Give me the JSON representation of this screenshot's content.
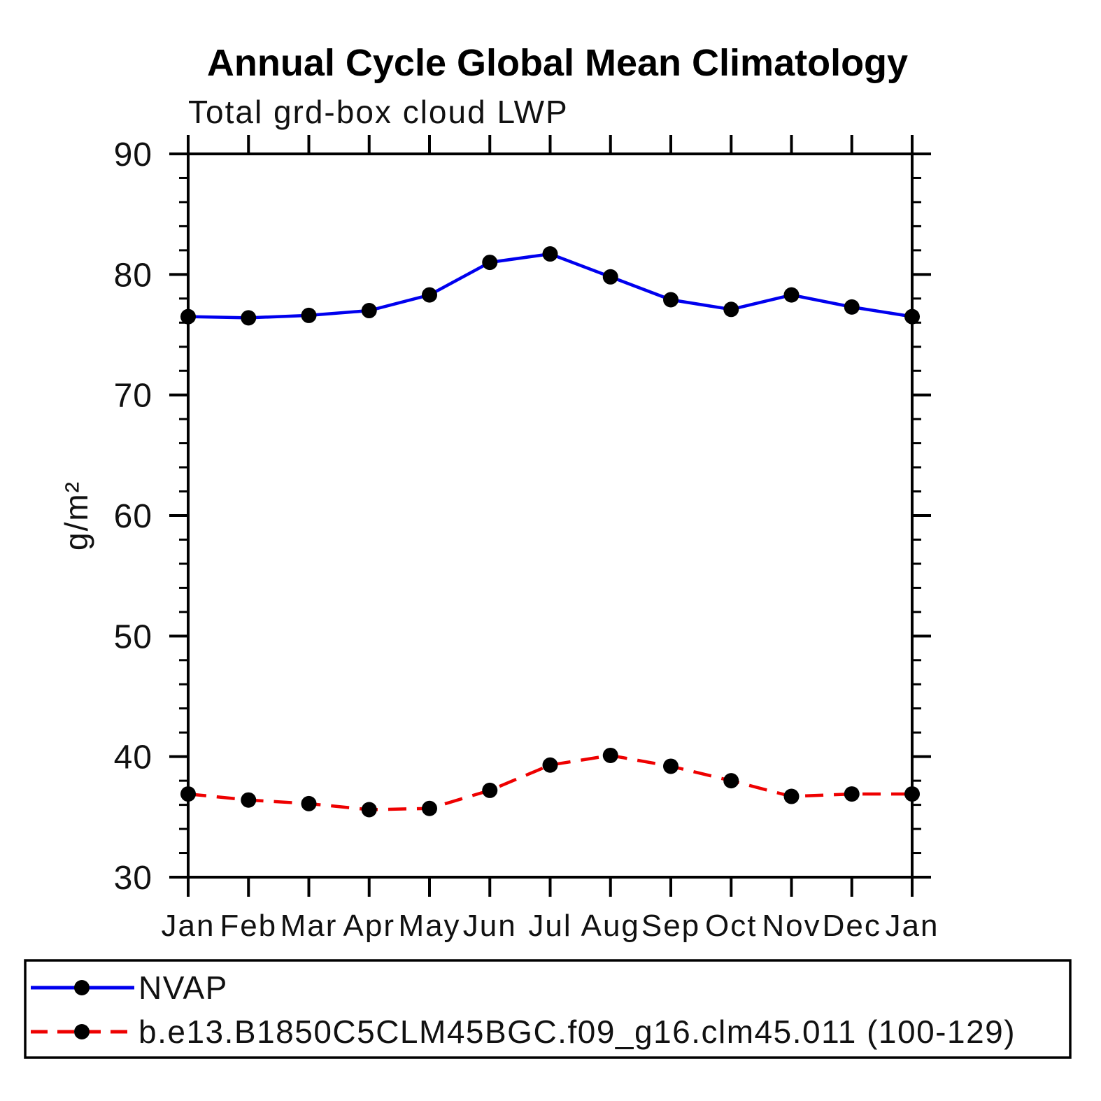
{
  "title": "Annual Cycle Global Mean Climatology",
  "subtitle": "Total grd-box cloud LWP",
  "chart_data": {
    "type": "line",
    "title": "Annual Cycle Global Mean Climatology",
    "subtitle": "Total grd-box cloud LWP",
    "xlabel": "",
    "ylabel": "g/m²",
    "categories": [
      "Jan",
      "Feb",
      "Mar",
      "Apr",
      "May",
      "Jun",
      "Jul",
      "Aug",
      "Sep",
      "Oct",
      "Nov",
      "Dec",
      "Jan"
    ],
    "ylim": [
      30,
      90
    ],
    "ytick_major": 10,
    "ytick_minor": 2,
    "grid": false,
    "legend_position": "bottom-box",
    "frame_color": "#000000",
    "background_color": "#ffffff",
    "series": [
      {
        "name": "NVAP",
        "color": "#0000ee",
        "line_style": "solid",
        "marker": "circle",
        "marker_color": "#000000",
        "values": [
          76.5,
          76.4,
          76.6,
          77.0,
          78.3,
          81.0,
          81.7,
          79.8,
          77.9,
          77.1,
          78.3,
          77.3,
          76.5
        ]
      },
      {
        "name": "b.e13.B1850C5CLM45BGC.f09_g16.clm45.011 (100-129)",
        "color": "#ee0000",
        "line_style": "dashed",
        "marker": "circle",
        "marker_color": "#000000",
        "values": [
          36.9,
          36.4,
          36.1,
          35.6,
          35.7,
          37.2,
          39.3,
          40.1,
          39.2,
          38.0,
          36.7,
          36.9,
          36.9
        ]
      }
    ]
  }
}
